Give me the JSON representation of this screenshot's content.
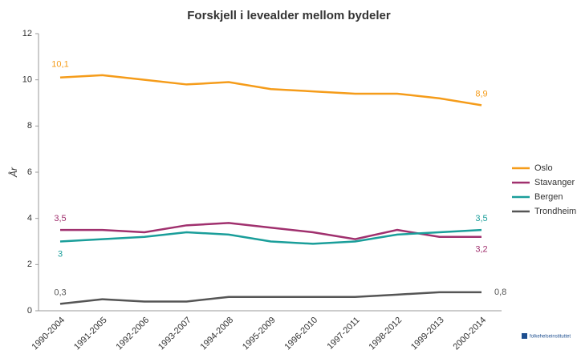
{
  "chart_data": {
    "type": "line",
    "title": "Forskjell i levealder mellom bydeler",
    "y_label": "År",
    "categories": [
      "1990-2004",
      "1991-2005",
      "1992-2006",
      "1993-2007",
      "1994-2008",
      "1995-2009",
      "1996-2010",
      "1997-2011",
      "1998-2012",
      "1999-2013",
      "2000-2014"
    ],
    "series": [
      {
        "name": "Oslo",
        "color": "#f59c1a",
        "values": [
          10.1,
          10.2,
          10.0,
          9.8,
          9.9,
          9.6,
          9.5,
          9.4,
          9.4,
          9.2,
          8.9
        ],
        "value_labels": [
          "10,1",
          null,
          null,
          null,
          null,
          null,
          null,
          null,
          null,
          null,
          "8,9"
        ]
      },
      {
        "name": "Stavanger",
        "color": "#a0306e",
        "values": [
          3.5,
          3.5,
          3.4,
          3.7,
          3.8,
          3.6,
          3.4,
          3.1,
          3.5,
          3.2,
          3.2
        ],
        "value_labels": [
          "3,5",
          null,
          null,
          null,
          null,
          null,
          null,
          null,
          null,
          null,
          "3,2"
        ]
      },
      {
        "name": "Bergen",
        "color": "#1a9e9a",
        "values": [
          3.0,
          3.1,
          3.2,
          3.4,
          3.3,
          3.0,
          2.9,
          3.0,
          3.3,
          3.4,
          3.5
        ],
        "value_labels": [
          "3",
          null,
          null,
          null,
          null,
          null,
          null,
          null,
          null,
          null,
          "3,5"
        ]
      },
      {
        "name": "Trondheim",
        "color": "#555555",
        "values": [
          0.3,
          0.5,
          0.4,
          0.4,
          0.6,
          0.6,
          0.6,
          0.6,
          0.7,
          0.8,
          0.8
        ],
        "value_labels": [
          "0,3",
          null,
          null,
          null,
          null,
          null,
          null,
          null,
          null,
          null,
          "0,8"
        ]
      }
    ],
    "ylim": [
      0,
      12
    ],
    "yticks": [
      0,
      2,
      4,
      6,
      8,
      10,
      12
    ],
    "legend": "right",
    "logo": "folkehelseinstituttet"
  }
}
